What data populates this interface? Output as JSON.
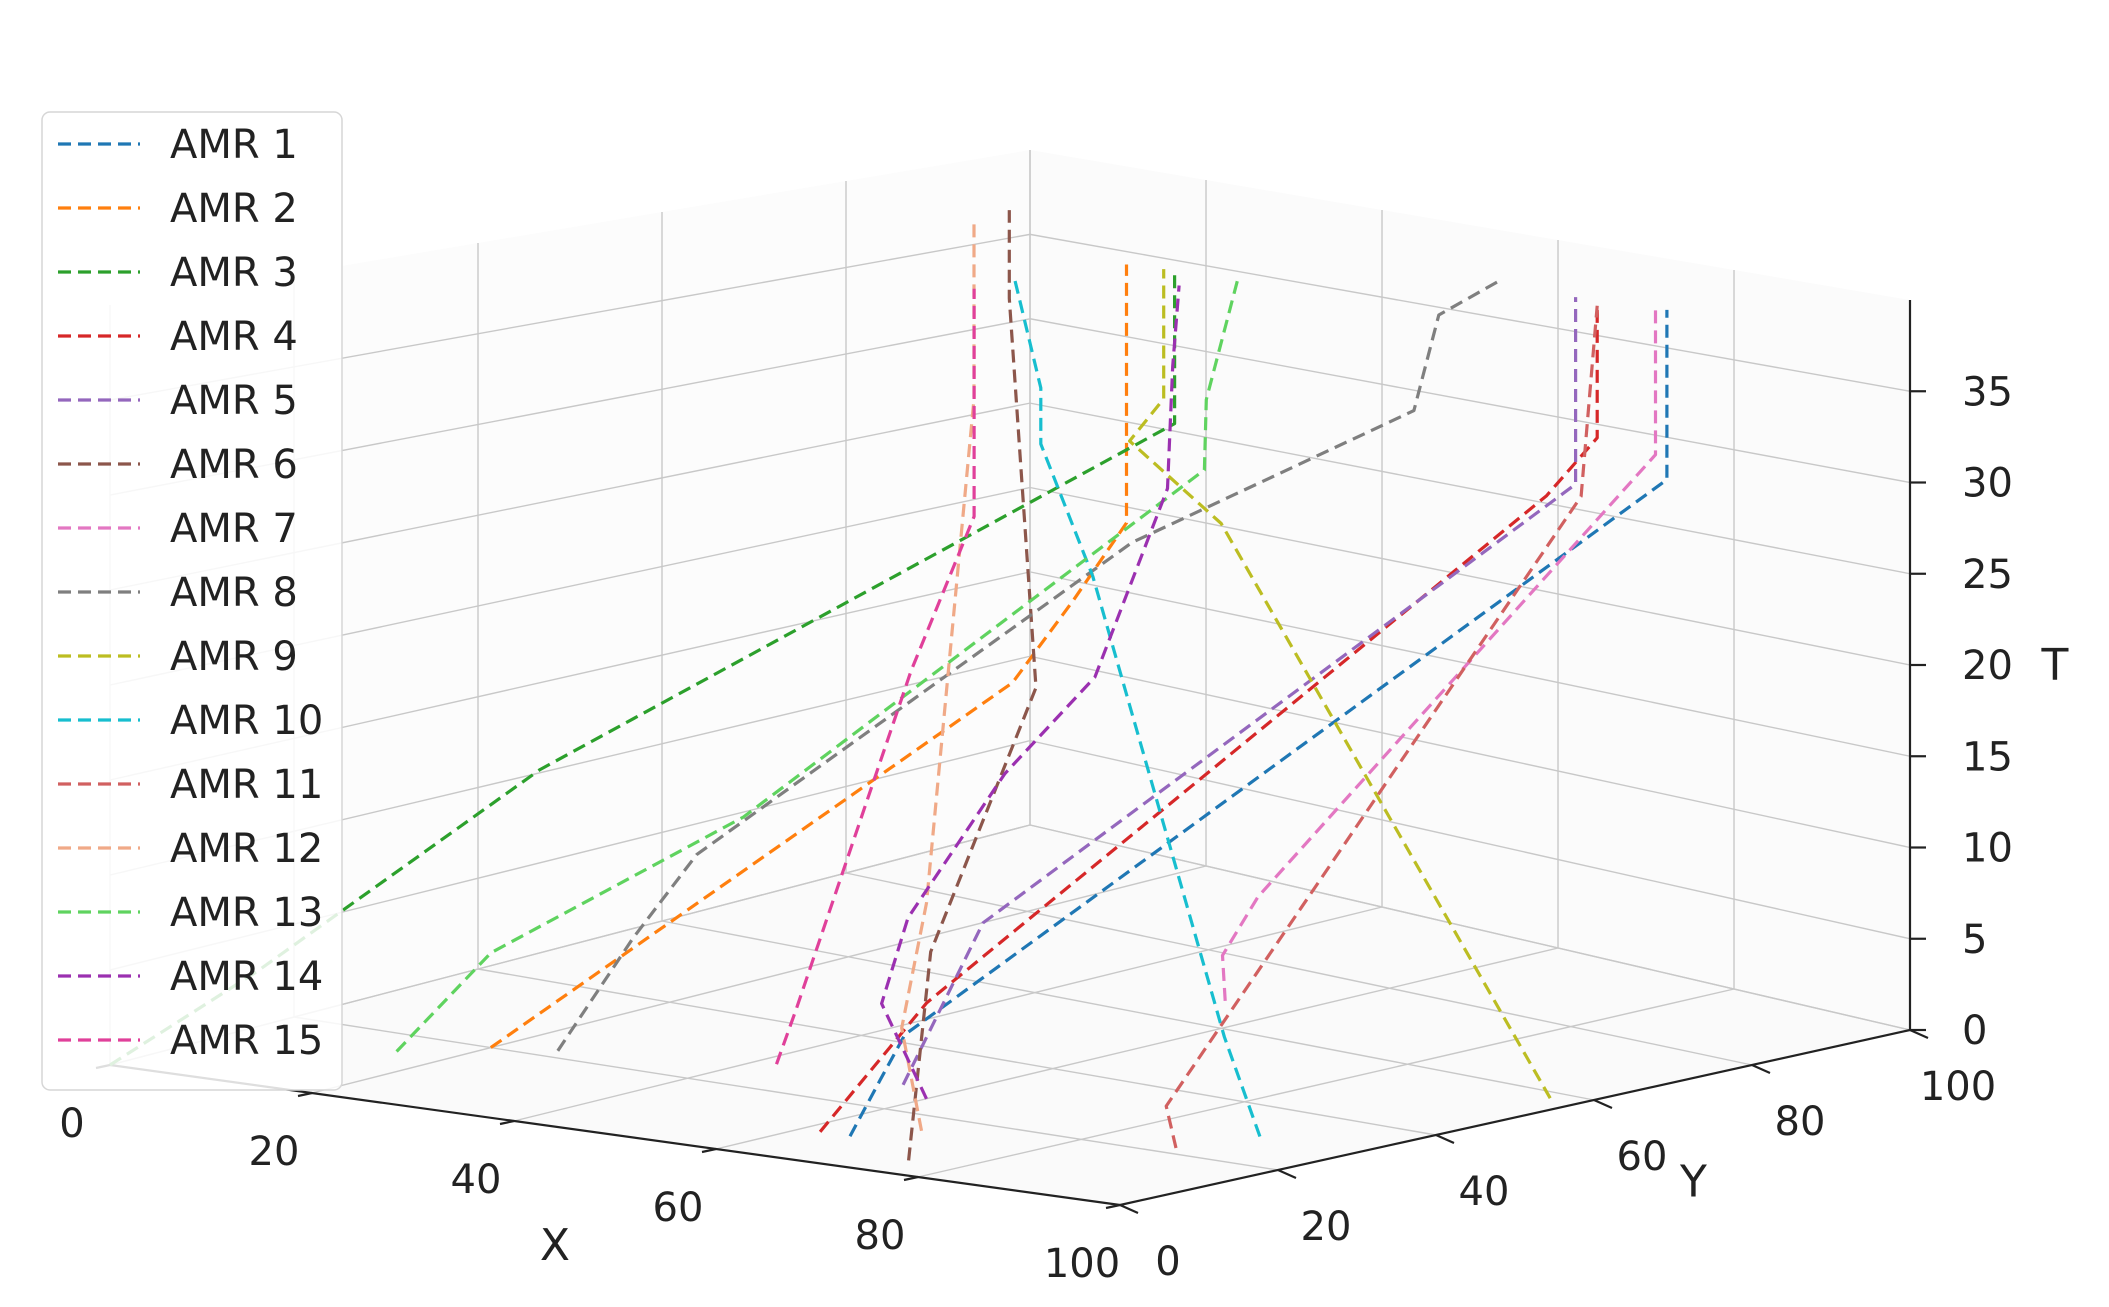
{
  "chart_data": {
    "type": "line",
    "projection": "3d",
    "line_style": "dashed",
    "axes": {
      "x": {
        "label": "X",
        "range": [
          0,
          100
        ],
        "ticks": [
          0,
          20,
          40,
          60,
          80,
          100
        ]
      },
      "y": {
        "label": "Y",
        "range": [
          0,
          100
        ],
        "ticks": [
          0,
          20,
          40,
          60,
          80,
          100
        ]
      },
      "t": {
        "label": "T",
        "range": [
          0,
          40
        ],
        "ticks": [
          0,
          5,
          10,
          15,
          20,
          25,
          30,
          35
        ]
      }
    },
    "grid": true,
    "legend": {
      "position": "upper-left"
    },
    "series": [
      {
        "name": "AMR 1",
        "color": "#1f77b4",
        "points": [
          [
            65,
            10,
            0
          ],
          [
            68,
            10,
            3
          ],
          [
            68,
            13,
            5
          ],
          [
            95,
            75,
            31
          ],
          [
            95,
            75,
            40
          ]
        ]
      },
      {
        "name": "AMR 2",
        "color": "#ff7f0e",
        "points": [
          [
            20,
            20,
            0
          ],
          [
            45,
            52,
            18
          ],
          [
            46,
            58,
            22
          ],
          [
            48,
            62,
            26
          ],
          [
            48,
            62,
            40
          ]
        ]
      },
      {
        "name": "AMR 3",
        "color": "#2ca02c",
        "points": [
          [
            0,
            0,
            0
          ],
          [
            10,
            5,
            5
          ],
          [
            25,
            20,
            15
          ],
          [
            55,
            60,
            32
          ],
          [
            55,
            60,
            40
          ]
        ]
      },
      {
        "name": "AMR 4",
        "color": "#d62728",
        "points": [
          [
            62,
            10,
            0
          ],
          [
            66,
            18,
            6
          ],
          [
            88,
            68,
            30
          ],
          [
            90,
            72,
            33
          ],
          [
            90,
            72,
            40
          ]
        ]
      },
      {
        "name": "AMR 5",
        "color": "#9467bd",
        "points": [
          [
            55,
            28,
            0
          ],
          [
            58,
            34,
            8
          ],
          [
            85,
            75,
            30
          ],
          [
            85,
            75,
            40
          ]
        ]
      },
      {
        "name": "AMR 6",
        "color": "#8c564b",
        "points": [
          [
            75,
            5,
            0
          ],
          [
            63,
            22,
            8
          ],
          [
            60,
            38,
            20
          ],
          [
            20,
            78,
            35
          ],
          [
            20,
            78,
            40
          ]
        ]
      },
      {
        "name": "AMR 7",
        "color": "#e377c2",
        "points": [
          [
            78,
            40,
            5
          ],
          [
            76,
            42,
            7
          ],
          [
            78,
            44,
            10
          ],
          [
            92,
            77,
            32
          ],
          [
            92,
            77,
            40
          ]
        ]
      },
      {
        "name": "AMR 8",
        "color": "#7f7f7f",
        "points": [
          [
            25,
            22,
            0
          ],
          [
            30,
            25,
            6
          ],
          [
            32,
            30,
            10
          ],
          [
            55,
            55,
            26
          ],
          [
            70,
            72,
            33
          ],
          [
            70,
            75,
            38
          ],
          [
            74,
            78,
            40
          ]
        ]
      },
      {
        "name": "AMR 9",
        "color": "#bcbd22",
        "points": [
          [
            97,
            58,
            0
          ],
          [
            60,
            60,
            27
          ],
          [
            52,
            58,
            31
          ],
          [
            52,
            62,
            33
          ],
          [
            52,
            62,
            40
          ]
        ]
      },
      {
        "name": "AMR 10",
        "color": "#17becf",
        "points": [
          [
            90,
            30,
            0
          ],
          [
            88,
            28,
            5
          ],
          [
            58,
            47,
            25
          ],
          [
            48,
            52,
            31
          ],
          [
            48,
            52,
            34
          ],
          [
            47,
            50,
            40
          ]
        ]
      },
      {
        "name": "AMR 11",
        "color": "#d16060",
        "points": [
          [
            88,
            22,
            0
          ],
          [
            87,
            22,
            2
          ],
          [
            90,
            70,
            30
          ],
          [
            90,
            72,
            40
          ]
        ]
      },
      {
        "name": "AMR 12",
        "color": "#f0a987",
        "points": [
          [
            68,
            15,
            0
          ],
          [
            66,
            15,
            5
          ],
          [
            60,
            25,
            10
          ],
          [
            22,
            72,
            30
          ],
          [
            22,
            72,
            40
          ]
        ]
      },
      {
        "name": "AMR 13",
        "color": "#5fd35f",
        "points": [
          [
            15,
            15,
            0
          ],
          [
            20,
            20,
            5
          ],
          [
            35,
            32,
            12
          ],
          [
            60,
            58,
            30
          ],
          [
            62,
            56,
            34
          ],
          [
            60,
            62,
            40
          ]
        ]
      },
      {
        "name": "AMR 14",
        "color": "#9b30b0",
        "points": [
          [
            60,
            25,
            0
          ],
          [
            58,
            22,
            5
          ],
          [
            52,
            32,
            8
          ],
          [
            55,
            40,
            15
          ],
          [
            60,
            45,
            20
          ],
          [
            65,
            48,
            30
          ],
          [
            62,
            52,
            36
          ],
          [
            60,
            55,
            40
          ]
        ]
      },
      {
        "name": "AMR 15",
        "color": "#e0409a",
        "points": [
          [
            42,
            28,
            0
          ],
          [
            44,
            28,
            3
          ],
          [
            47,
            38,
            20
          ],
          [
            50,
            42,
            28
          ],
          [
            50,
            42,
            40
          ]
        ]
      }
    ]
  }
}
